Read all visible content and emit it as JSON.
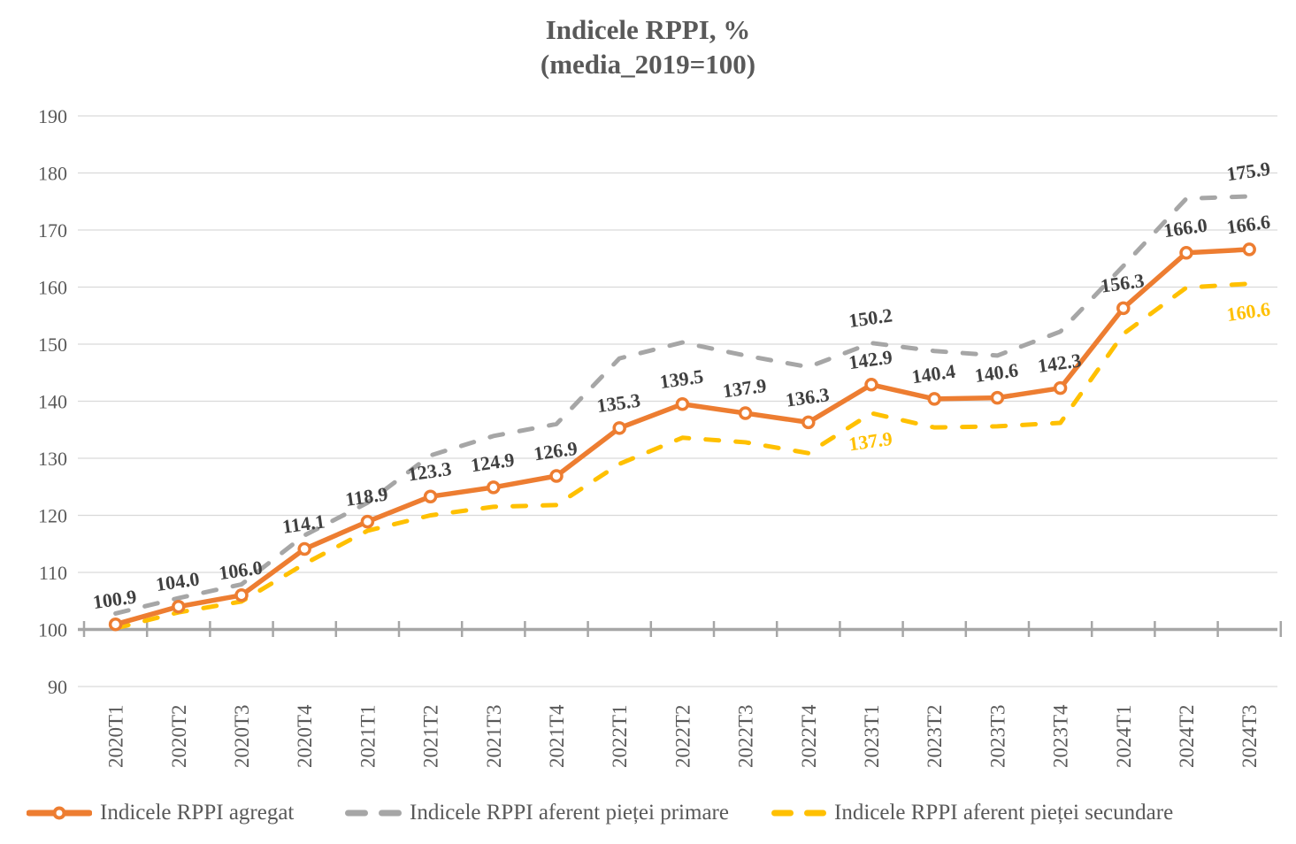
{
  "title": {
    "line1": "Indicele RPPI, %",
    "line2": "(media_2019=100)"
  },
  "chart_data": {
    "type": "line",
    "title": "Indicele RPPI, % (media_2019=100)",
    "categories": [
      "2020T1",
      "2020T2",
      "2020T3",
      "2020T4",
      "2021T1",
      "2021T2",
      "2021T3",
      "2021T4",
      "2022T1",
      "2022T2",
      "2022T3",
      "2022T4",
      "2023T1",
      "2023T2",
      "2023T3",
      "2023T4",
      "2024T1",
      "2024T2",
      "2024T3"
    ],
    "series": [
      {
        "id": "agregat",
        "name": "Indicele RPPI agregat",
        "color": "#ED7D31",
        "line_style": "solid",
        "marker": "circle",
        "values": [
          100.9,
          104.0,
          106.0,
          114.1,
          118.9,
          123.3,
          124.9,
          126.9,
          135.3,
          139.5,
          137.9,
          136.3,
          142.9,
          140.4,
          140.6,
          142.3,
          156.3,
          166.0,
          166.6
        ],
        "point_labels": {
          "0": "100.9",
          "1": "104.0",
          "2": "106.0",
          "3": "114.1",
          "4": "118.9",
          "5": "123.3",
          "6": "124.9",
          "7": "126.9",
          "8": "135.3",
          "9": "139.5",
          "10": "137.9",
          "11": "136.3",
          "12": "142.9",
          "13": "140.4",
          "14": "140.6",
          "15": "142.3",
          "16": "156.3",
          "17": "166.0",
          "18": "166.6"
        },
        "label_position": "above",
        "label_color": "#404040"
      },
      {
        "id": "primare",
        "name": "Indicele RPPI aferent pieței primare",
        "color": "#A6A6A6",
        "line_style": "dashed",
        "marker": "none",
        "values": [
          102.8,
          105.5,
          107.9,
          116.5,
          122.2,
          130.5,
          133.9,
          136.0,
          147.5,
          150.3,
          148.0,
          146.0,
          150.2,
          148.8,
          148.0,
          152.2,
          163.7,
          175.5,
          175.9
        ],
        "point_labels": {
          "12": "150.2",
          "18": "175.9"
        },
        "label_position": "above",
        "label_color": "#404040"
      },
      {
        "id": "secundare",
        "name": "Indicele RPPI aferent pieței secundare",
        "color": "#FFC000",
        "line_style": "dashed",
        "marker": "none",
        "values": [
          100.2,
          103.0,
          104.9,
          111.5,
          117.3,
          120.0,
          121.5,
          121.8,
          129.0,
          133.6,
          132.8,
          130.9,
          137.9,
          135.4,
          135.6,
          136.2,
          151.8,
          159.9,
          160.6
        ],
        "point_labels": {
          "12": "137.9",
          "18": "160.6"
        },
        "label_position": "below",
        "label_color": "#FFC000"
      }
    ],
    "y_axis": {
      "min": 90,
      "max": 190,
      "step": 10,
      "tick_labels": [
        "190",
        "180",
        "170",
        "160",
        "150",
        "140",
        "130",
        "120",
        "110",
        "100",
        "90"
      ],
      "baseline_value": 100
    },
    "grid": true,
    "legend_position": "bottom",
    "colors": {
      "gridline": "#D9D9D9",
      "axis_line": "#A6A6A6",
      "axis_text": "#595959",
      "title_text": "#595959",
      "data_label": "#404040"
    }
  }
}
